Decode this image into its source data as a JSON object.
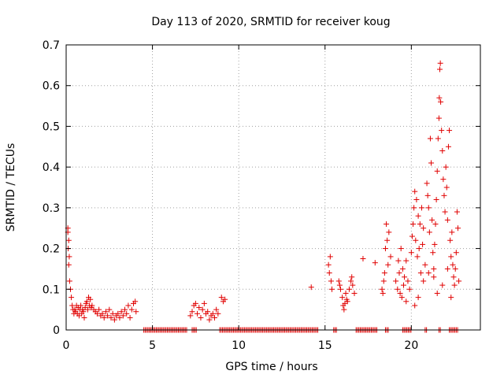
{
  "chart_data": {
    "type": "scatter",
    "title": "Day 113 of 2020, SRMTID for receiver koug",
    "xlabel": "GPS time / hours",
    "ylabel": "SRMTID / TECUs",
    "xlim": [
      0,
      24
    ],
    "ylim": [
      0,
      0.7
    ],
    "xticks": [
      0,
      5,
      10,
      15,
      20
    ],
    "yticks": [
      0,
      0.1,
      0.2,
      0.3,
      0.4,
      0.5,
      0.6,
      0.7
    ],
    "xtick_labels": [
      "0",
      "5",
      "10",
      "15",
      "20"
    ],
    "ytick_labels": [
      "0",
      "0.1",
      "0.2",
      "0.3",
      "0.4",
      "0.5",
      "0.6",
      "0.7"
    ],
    "grid": true,
    "marker": "+",
    "series": [
      {
        "name": "SRMTID",
        "color": "#e00000",
        "points": [
          [
            0.1,
            0.25
          ],
          [
            0.1,
            0.24
          ],
          [
            0.15,
            0.22
          ],
          [
            0.12,
            0.2
          ],
          [
            0.18,
            0.18
          ],
          [
            0.15,
            0.16
          ],
          [
            0.2,
            0.12
          ],
          [
            0.25,
            0.1
          ],
          [
            0.3,
            0.08
          ],
          [
            0.35,
            0.06
          ],
          [
            0.4,
            0.05
          ],
          [
            0.45,
            0.04
          ],
          [
            0.5,
            0.05
          ],
          [
            0.55,
            0.045
          ],
          [
            0.6,
            0.06
          ],
          [
            0.65,
            0.04
          ],
          [
            0.7,
            0.055
          ],
          [
            0.75,
            0.035
          ],
          [
            0.8,
            0.05
          ],
          [
            0.85,
            0.06
          ],
          [
            0.9,
            0.04
          ],
          [
            0.95,
            0.05
          ],
          [
            1.0,
            0.045
          ],
          [
            1.05,
            0.03
          ],
          [
            1.1,
            0.055
          ],
          [
            1.15,
            0.065
          ],
          [
            1.2,
            0.07
          ],
          [
            1.25,
            0.05
          ],
          [
            1.3,
            0.08
          ],
          [
            1.35,
            0.06
          ],
          [
            1.4,
            0.075
          ],
          [
            1.45,
            0.055
          ],
          [
            1.5,
            0.06
          ],
          [
            1.6,
            0.05
          ],
          [
            1.7,
            0.045
          ],
          [
            1.8,
            0.04
          ],
          [
            1.9,
            0.05
          ],
          [
            2.0,
            0.035
          ],
          [
            2.1,
            0.04
          ],
          [
            2.2,
            0.03
          ],
          [
            2.3,
            0.045
          ],
          [
            2.4,
            0.035
          ],
          [
            2.5,
            0.05
          ],
          [
            2.6,
            0.03
          ],
          [
            2.7,
            0.04
          ],
          [
            2.8,
            0.025
          ],
          [
            2.9,
            0.035
          ],
          [
            3.0,
            0.04
          ],
          [
            3.1,
            0.03
          ],
          [
            3.2,
            0.045
          ],
          [
            3.3,
            0.035
          ],
          [
            3.4,
            0.05
          ],
          [
            3.5,
            0.04
          ],
          [
            3.6,
            0.06
          ],
          [
            3.7,
            0.03
          ],
          [
            3.8,
            0.05
          ],
          [
            3.9,
            0.065
          ],
          [
            4.0,
            0.07
          ],
          [
            4.05,
            0.045
          ],
          [
            7.2,
            0.035
          ],
          [
            7.3,
            0.045
          ],
          [
            7.4,
            0.06
          ],
          [
            7.5,
            0.065
          ],
          [
            7.6,
            0.04
          ],
          [
            7.7,
            0.055
          ],
          [
            7.8,
            0.03
          ],
          [
            7.9,
            0.05
          ],
          [
            8.0,
            0.065
          ],
          [
            8.1,
            0.04
          ],
          [
            8.2,
            0.045
          ],
          [
            8.3,
            0.025
          ],
          [
            8.4,
            0.035
          ],
          [
            8.5,
            0.04
          ],
          [
            8.6,
            0.03
          ],
          [
            8.7,
            0.05
          ],
          [
            8.8,
            0.04
          ],
          [
            9.0,
            0.08
          ],
          [
            9.1,
            0.07
          ],
          [
            9.2,
            0.075
          ],
          [
            14.2,
            0.105
          ],
          [
            15.2,
            0.16
          ],
          [
            15.25,
            0.14
          ],
          [
            15.3,
            0.18
          ],
          [
            15.35,
            0.12
          ],
          [
            15.4,
            0.1
          ],
          [
            15.8,
            0.12
          ],
          [
            15.85,
            0.11
          ],
          [
            15.9,
            0.1
          ],
          [
            16.0,
            0.08
          ],
          [
            16.05,
            0.06
          ],
          [
            16.1,
            0.05
          ],
          [
            16.15,
            0.065
          ],
          [
            16.2,
            0.09
          ],
          [
            16.25,
            0.075
          ],
          [
            16.3,
            0.07
          ],
          [
            16.4,
            0.1
          ],
          [
            16.5,
            0.12
          ],
          [
            16.55,
            0.13
          ],
          [
            16.6,
            0.11
          ],
          [
            16.7,
            0.09
          ],
          [
            17.2,
            0.175
          ],
          [
            17.9,
            0.165
          ],
          [
            18.3,
            0.1
          ],
          [
            18.35,
            0.09
          ],
          [
            18.4,
            0.12
          ],
          [
            18.45,
            0.14
          ],
          [
            18.5,
            0.2
          ],
          [
            18.55,
            0.26
          ],
          [
            18.6,
            0.22
          ],
          [
            18.65,
            0.16
          ],
          [
            18.7,
            0.24
          ],
          [
            18.8,
            0.18
          ],
          [
            19.1,
            0.12
          ],
          [
            19.2,
            0.1
          ],
          [
            19.25,
            0.17
          ],
          [
            19.3,
            0.14
          ],
          [
            19.35,
            0.09
          ],
          [
            19.4,
            0.2
          ],
          [
            19.45,
            0.08
          ],
          [
            19.5,
            0.15
          ],
          [
            19.55,
            0.11
          ],
          [
            19.6,
            0.13
          ],
          [
            19.7,
            0.17
          ],
          [
            19.8,
            0.12
          ],
          [
            19.9,
            0.1
          ],
          [
            20.0,
            0.19
          ],
          [
            20.05,
            0.23
          ],
          [
            20.1,
            0.26
          ],
          [
            20.15,
            0.3
          ],
          [
            20.2,
            0.34
          ],
          [
            20.25,
            0.22
          ],
          [
            20.3,
            0.32
          ],
          [
            20.35,
            0.18
          ],
          [
            20.4,
            0.28
          ],
          [
            20.45,
            0.2
          ],
          [
            20.5,
            0.26
          ],
          [
            20.55,
            0.14
          ],
          [
            20.6,
            0.3
          ],
          [
            20.65,
            0.21
          ],
          [
            20.7,
            0.25
          ],
          [
            20.8,
            0.16
          ],
          [
            20.9,
            0.36
          ],
          [
            20.95,
            0.33
          ],
          [
            21.0,
            0.3
          ],
          [
            21.05,
            0.24
          ],
          [
            21.1,
            0.47
          ],
          [
            21.15,
            0.41
          ],
          [
            21.2,
            0.27
          ],
          [
            21.25,
            0.19
          ],
          [
            21.3,
            0.15
          ],
          [
            21.35,
            0.21
          ],
          [
            21.4,
            0.26
          ],
          [
            21.45,
            0.32
          ],
          [
            21.5,
            0.39
          ],
          [
            21.55,
            0.47
          ],
          [
            21.6,
            0.52
          ],
          [
            21.62,
            0.57
          ],
          [
            21.65,
            0.64
          ],
          [
            21.68,
            0.655
          ],
          [
            21.7,
            0.56
          ],
          [
            21.75,
            0.49
          ],
          [
            21.8,
            0.44
          ],
          [
            21.85,
            0.37
          ],
          [
            21.9,
            0.33
          ],
          [
            21.95,
            0.29
          ],
          [
            22.0,
            0.4
          ],
          [
            22.05,
            0.35
          ],
          [
            22.1,
            0.27
          ],
          [
            22.15,
            0.45
          ],
          [
            22.2,
            0.49
          ],
          [
            22.25,
            0.22
          ],
          [
            22.3,
            0.18
          ],
          [
            22.35,
            0.24
          ],
          [
            22.4,
            0.16
          ],
          [
            22.45,
            0.13
          ],
          [
            22.5,
            0.11
          ],
          [
            22.55,
            0.15
          ],
          [
            22.6,
            0.19
          ],
          [
            22.65,
            0.29
          ],
          [
            22.7,
            0.25
          ],
          [
            22.75,
            0.12
          ],
          [
            21.0,
            0.14
          ],
          [
            20.7,
            0.12
          ],
          [
            21.5,
            0.09
          ],
          [
            20.4,
            0.08
          ],
          [
            21.8,
            0.11
          ],
          [
            22.3,
            0.08
          ],
          [
            19.7,
            0.07
          ],
          [
            20.2,
            0.06
          ],
          [
            21.3,
            0.13
          ],
          [
            22.1,
            0.15
          ]
        ],
        "zero_segments": [
          [
            4.5,
            7.0
          ],
          [
            7.3,
            7.6
          ],
          [
            8.9,
            14.6
          ],
          [
            15.5,
            15.7
          ],
          [
            16.8,
            18.0
          ],
          [
            18.5,
            18.7
          ],
          [
            19.5,
            20.0
          ],
          [
            20.8,
            20.9
          ],
          [
            21.6,
            21.7
          ],
          [
            22.2,
            22.7
          ]
        ]
      }
    ]
  }
}
